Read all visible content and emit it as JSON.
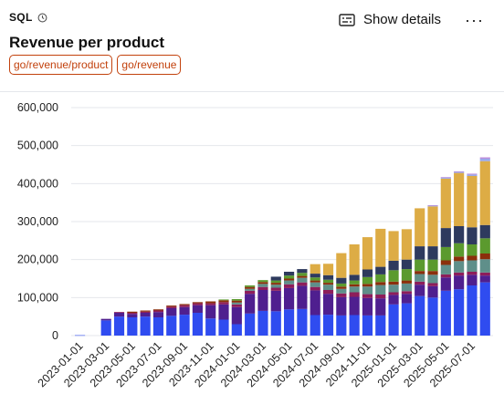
{
  "header": {
    "source_label": "SQL",
    "title": "Revenue per product",
    "tags": [
      "go/revenue/product",
      "go/revenue"
    ],
    "details_label": "Show details",
    "more_label": "···"
  },
  "colors": {
    "tag": "#c2410c",
    "gridline": "#e5e7eb",
    "series": [
      "#2f4cf0",
      "#4f1f8f",
      "#8d1d5a",
      "#5f8f8a",
      "#8b2f0c",
      "#5b9a2e",
      "#2e3a5e",
      "#ddac45",
      "#9aa9e8",
      "#b57dd6"
    ]
  },
  "chart_data": {
    "type": "bar",
    "stacked": true,
    "title": "",
    "xlabel": "",
    "ylabel": "",
    "ylim": [
      0,
      600000
    ],
    "y_ticks": [
      0,
      100000,
      200000,
      300000,
      400000,
      500000,
      600000
    ],
    "y_tick_labels": [
      "0",
      "100,000",
      "200,000",
      "300,000",
      "400,000",
      "500,000",
      "600,000"
    ],
    "x_tick_labels": [
      "2023-01-01",
      "2023-03-01",
      "2023-05-01",
      "2023-07-01",
      "2023-09-01",
      "2023-11-01",
      "2024-01-01",
      "2024-03-01",
      "2024-05-01",
      "2024-07-01",
      "2024-09-01",
      "2024-11-01",
      "2025-01-01",
      "2025-03-01",
      "2025-05-01",
      "2025-07-01"
    ],
    "x_tick_every": 2,
    "grid": true,
    "legend": "none",
    "categories": [
      "2023-01-01",
      "2023-02-01",
      "2023-03-01",
      "2023-04-01",
      "2023-05-01",
      "2023-06-01",
      "2023-07-01",
      "2023-08-01",
      "2023-09-01",
      "2023-10-01",
      "2023-11-01",
      "2023-12-01",
      "2024-01-01",
      "2024-02-01",
      "2024-03-01",
      "2024-04-01",
      "2024-05-01",
      "2024-06-01",
      "2024-07-01",
      "2024-08-01",
      "2024-09-01",
      "2024-10-01",
      "2024-11-01",
      "2024-12-01",
      "2025-01-01",
      "2025-02-01",
      "2025-03-01",
      "2025-04-01",
      "2025-05-01",
      "2025-06-01",
      "2025-07-01",
      "2025-08-01"
    ],
    "series": [
      {
        "values": [
          1000,
          0,
          40000,
          50000,
          48000,
          50000,
          48000,
          52000,
          55000,
          60000,
          45000,
          42000,
          30000,
          58000,
          65000,
          64000,
          69000,
          70000,
          54000,
          55000,
          53000,
          54000,
          53000,
          53000,
          82000,
          85000,
          104000,
          100000,
          118000,
          122000,
          132000,
          140000
        ]
      },
      {
        "values": [
          0,
          0,
          4000,
          10000,
          9000,
          10000,
          14000,
          20000,
          20000,
          20000,
          35000,
          40000,
          45000,
          52000,
          55000,
          54000,
          56000,
          61000,
          65000,
          55000,
          48000,
          48000,
          46000,
          45000,
          25000,
          25000,
          30000,
          30000,
          35000,
          36000,
          28000,
          18000
        ]
      },
      {
        "values": [
          0,
          0,
          0,
          2000,
          3000,
          3000,
          4000,
          4000,
          5000,
          5000,
          5000,
          6000,
          7000,
          8000,
          8000,
          8000,
          10000,
          9000,
          9000,
          10000,
          10000,
          12000,
          10000,
          10000,
          7000,
          7000,
          8000,
          8000,
          8000,
          8000,
          8000,
          8000
        ]
      },
      {
        "values": [
          0,
          0,
          0,
          0,
          0,
          0,
          0,
          0,
          0,
          0,
          0,
          0,
          5000,
          5000,
          8000,
          8000,
          10000,
          12000,
          12000,
          14000,
          12000,
          15000,
          20000,
          25000,
          20000,
          20000,
          20000,
          22000,
          25000,
          30000,
          30000,
          35000
        ]
      },
      {
        "values": [
          0,
          0,
          0,
          0,
          3000,
          3000,
          3000,
          3000,
          3000,
          3000,
          5000,
          5000,
          5000,
          5000,
          5000,
          5000,
          5000,
          5000,
          5000,
          5000,
          6000,
          6000,
          7000,
          8000,
          8000,
          8000,
          8000,
          10000,
          12000,
          12000,
          12000,
          15000
        ]
      },
      {
        "values": [
          0,
          0,
          0,
          0,
          0,
          0,
          0,
          0,
          0,
          0,
          0,
          2000,
          4000,
          4000,
          5000,
          6000,
          8000,
          8000,
          8000,
          8000,
          8000,
          10000,
          18000,
          20000,
          30000,
          30000,
          30000,
          30000,
          35000,
          35000,
          30000,
          40000
        ]
      },
      {
        "values": [
          0,
          0,
          0,
          0,
          0,
          0,
          0,
          0,
          0,
          0,
          0,
          0,
          0,
          0,
          0,
          10000,
          10000,
          10000,
          10000,
          12000,
          15000,
          15000,
          20000,
          20000,
          25000,
          25000,
          35000,
          35000,
          50000,
          45000,
          45000,
          35000
        ]
      },
      {
        "values": [
          0,
          0,
          0,
          0,
          0,
          0,
          0,
          0,
          0,
          0,
          0,
          0,
          0,
          0,
          0,
          0,
          0,
          0,
          25000,
          30000,
          65000,
          80000,
          85000,
          100000,
          78000,
          80000,
          100000,
          105000,
          130000,
          140000,
          135000,
          168000
        ]
      },
      {
        "values": [
          0,
          0,
          0,
          0,
          0,
          0,
          0,
          0,
          0,
          0,
          0,
          0,
          0,
          0,
          0,
          0,
          0,
          0,
          0,
          0,
          0,
          0,
          0,
          0,
          0,
          0,
          0,
          2000,
          3000,
          3000,
          4000,
          7000
        ]
      },
      {
        "values": [
          0,
          0,
          0,
          0,
          0,
          0,
          0,
          0,
          0,
          0,
          0,
          0,
          0,
          0,
          0,
          0,
          0,
          0,
          0,
          0,
          0,
          0,
          0,
          0,
          0,
          0,
          0,
          1000,
          1000,
          1000,
          2000,
          3000
        ]
      }
    ]
  }
}
